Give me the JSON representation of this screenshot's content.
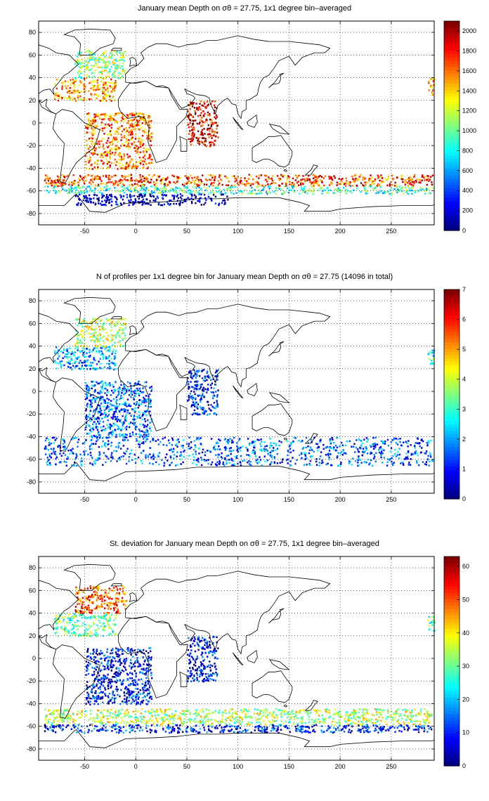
{
  "chart_data": [
    {
      "type": "heatmap",
      "title": "January mean Depth on σθ = 27.75, 1x1 degree bin–averaged",
      "xlim": [
        -95,
        292
      ],
      "ylim": [
        -90,
        90
      ],
      "x_ticks": [
        -50,
        0,
        50,
        100,
        150,
        200,
        250
      ],
      "y_ticks": [
        80,
        60,
        40,
        20,
        0,
        -20,
        -40,
        -60,
        -80
      ],
      "grid": true,
      "colorbar": {
        "min": 0,
        "max": 2100,
        "ticks": [
          0,
          200,
          400,
          600,
          800,
          1000,
          1200,
          1400,
          1600,
          1800,
          2000
        ]
      },
      "regions": [
        {
          "lon": [
            -80,
            -20
          ],
          "lat": [
            20,
            40
          ],
          "value": 1500
        },
        {
          "lon": [
            -60,
            -10
          ],
          "lat": [
            40,
            65
          ],
          "value": 1100
        },
        {
          "lon": [
            -50,
            15
          ],
          "lat": [
            -40,
            10
          ],
          "value": 1600
        },
        {
          "lon": [
            50,
            80
          ],
          "lat": [
            -20,
            20
          ],
          "value": 1900
        },
        {
          "lon": [
            -90,
            290
          ],
          "lat": [
            -55,
            -45
          ],
          "value": 1700
        },
        {
          "lon": [
            -90,
            290
          ],
          "lat": [
            -62,
            -55
          ],
          "value": 900
        },
        {
          "lon": [
            -60,
            90
          ],
          "lat": [
            -72,
            -62
          ],
          "value": 100
        },
        {
          "lon": [
            285,
            292
          ],
          "lat": [
            25,
            40
          ],
          "value": 1400
        }
      ]
    },
    {
      "type": "heatmap",
      "title": "N of profiles per 1x1 degree bin for January mean Depth on σθ = 27.75 (14096 in total)",
      "xlim": [
        -95,
        292
      ],
      "ylim": [
        -90,
        90
      ],
      "x_ticks": [
        -50,
        0,
        50,
        100,
        150,
        200,
        250
      ],
      "y_ticks": [
        80,
        60,
        40,
        20,
        0,
        -20,
        -40,
        -60,
        -80
      ],
      "grid": true,
      "colorbar": {
        "min": 0,
        "max": 7,
        "ticks": [
          0,
          1,
          2,
          3,
          4,
          5,
          6,
          7
        ]
      },
      "regions": [
        {
          "lon": [
            -80,
            -20
          ],
          "lat": [
            20,
            40
          ],
          "value": 2
        },
        {
          "lon": [
            -60,
            -10
          ],
          "lat": [
            40,
            65
          ],
          "value": 4
        },
        {
          "lon": [
            -50,
            15
          ],
          "lat": [
            -40,
            10
          ],
          "value": 1.5
        },
        {
          "lon": [
            50,
            80
          ],
          "lat": [
            -20,
            20
          ],
          "value": 1
        },
        {
          "lon": [
            -90,
            290
          ],
          "lat": [
            -65,
            -40
          ],
          "value": 1.5
        },
        {
          "lon": [
            285,
            292
          ],
          "lat": [
            25,
            40
          ],
          "value": 3
        }
      ]
    },
    {
      "type": "heatmap",
      "title": "St. deviation for January mean Depth on σθ = 27.75, 1x1 degree bin–averaged",
      "xlim": [
        -95,
        292
      ],
      "ylim": [
        -90,
        90
      ],
      "x_ticks": [
        -50,
        0,
        50,
        100,
        150,
        200,
        250
      ],
      "y_ticks": [
        80,
        60,
        40,
        20,
        0,
        -20,
        -40,
        -60,
        -80
      ],
      "grid": true,
      "colorbar": {
        "min": 0,
        "max": 63,
        "ticks": [
          0,
          10,
          20,
          30,
          40,
          50,
          60
        ]
      },
      "regions": [
        {
          "lon": [
            -80,
            -20
          ],
          "lat": [
            20,
            40
          ],
          "value": 30
        },
        {
          "lon": [
            -60,
            -10
          ],
          "lat": [
            40,
            65
          ],
          "value": 50
        },
        {
          "lon": [
            -50,
            15
          ],
          "lat": [
            -40,
            10
          ],
          "value": 8
        },
        {
          "lon": [
            50,
            80
          ],
          "lat": [
            -20,
            20
          ],
          "value": 8
        },
        {
          "lon": [
            -90,
            290
          ],
          "lat": [
            -58,
            -44
          ],
          "value": 35
        },
        {
          "lon": [
            -90,
            290
          ],
          "lat": [
            -65,
            -58
          ],
          "value": 10
        },
        {
          "lon": [
            285,
            292
          ],
          "lat": [
            25,
            40
          ],
          "value": 30
        }
      ]
    }
  ]
}
